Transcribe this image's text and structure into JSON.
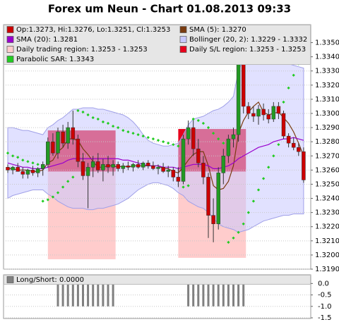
{
  "chart_data": [
    {
      "type": "candlestick",
      "title": "Forex um Neun - Chart 01.08.2013 09:33",
      "candles": {
        "name": "Op:1.3273, Hi:1.3276, Lo:1.3251, Cl:1.3253",
        "color": "#cc0000",
        "up_color": "#229922",
        "down_color": "#cc0000",
        "ohlc": [
          [
            1.3262,
            1.3264,
            1.3258,
            1.326
          ],
          [
            1.326,
            1.3263,
            1.3257,
            1.3262
          ],
          [
            1.3262,
            1.3265,
            1.3259,
            1.3259
          ],
          [
            1.3259,
            1.3262,
            1.3254,
            1.3257
          ],
          [
            1.3257,
            1.3261,
            1.3254,
            1.326
          ],
          [
            1.326,
            1.3263,
            1.3256,
            1.3258
          ],
          [
            1.3258,
            1.3262,
            1.3255,
            1.3261
          ],
          [
            1.3261,
            1.3266,
            1.3256,
            1.3264
          ],
          [
            1.3264,
            1.3283,
            1.3262,
            1.328
          ],
          [
            1.328,
            1.3286,
            1.327,
            1.3272
          ],
          [
            1.3272,
            1.329,
            1.3268,
            1.3287
          ],
          [
            1.3287,
            1.3292,
            1.3276,
            1.3279
          ],
          [
            1.3279,
            1.3294,
            1.3275,
            1.329
          ],
          [
            1.329,
            1.3302,
            1.3278,
            1.3282
          ],
          [
            1.3282,
            1.3285,
            1.3262,
            1.3266
          ],
          [
            1.3266,
            1.3272,
            1.3253,
            1.3256
          ],
          [
            1.3256,
            1.3265,
            1.3233,
            1.3262
          ],
          [
            1.3262,
            1.327,
            1.3255,
            1.3266
          ],
          [
            1.3266,
            1.3272,
            1.3258,
            1.326
          ],
          [
            1.326,
            1.3268,
            1.3252,
            1.3264
          ],
          [
            1.3264,
            1.327,
            1.3258,
            1.3262
          ],
          [
            1.3262,
            1.3267,
            1.3256,
            1.3264
          ],
          [
            1.3264,
            1.3266,
            1.3259,
            1.3261
          ],
          [
            1.3261,
            1.3265,
            1.3258,
            1.3263
          ],
          [
            1.3263,
            1.3266,
            1.326,
            1.3262
          ],
          [
            1.3262,
            1.3265,
            1.3259,
            1.3264
          ],
          [
            1.3264,
            1.3267,
            1.3261,
            1.3262
          ],
          [
            1.3262,
            1.3266,
            1.326,
            1.3265
          ],
          [
            1.3265,
            1.3267,
            1.3261,
            1.3263
          ],
          [
            1.3263,
            1.3266,
            1.326,
            1.3261
          ],
          [
            1.3261,
            1.3264,
            1.3257,
            1.3262
          ],
          [
            1.3262,
            1.3265,
            1.3258,
            1.3259
          ],
          [
            1.3259,
            1.3263,
            1.3255,
            1.326
          ],
          [
            1.326,
            1.3262,
            1.3252,
            1.3255
          ],
          [
            1.3255,
            1.3262,
            1.3248,
            1.3252
          ],
          [
            1.3252,
            1.3285,
            1.325,
            1.3282
          ],
          [
            1.3282,
            1.3295,
            1.3278,
            1.329
          ],
          [
            1.329,
            1.3296,
            1.327,
            1.3275
          ],
          [
            1.3275,
            1.3282,
            1.3262,
            1.3265
          ],
          [
            1.3265,
            1.327,
            1.325,
            1.3255
          ],
          [
            1.3255,
            1.3258,
            1.3212,
            1.3228
          ],
          [
            1.3228,
            1.324,
            1.3209,
            1.3222
          ],
          [
            1.3222,
            1.3262,
            1.3218,
            1.3258
          ],
          [
            1.3258,
            1.3275,
            1.325,
            1.327
          ],
          [
            1.327,
            1.3285,
            1.3265,
            1.3282
          ],
          [
            1.3282,
            1.329,
            1.3276,
            1.3285
          ],
          [
            1.3285,
            1.334,
            1.328,
            1.3335
          ],
          [
            1.3335,
            1.3343,
            1.33,
            1.3305
          ],
          [
            1.3305,
            1.3308,
            1.3296,
            1.33
          ],
          [
            1.33,
            1.3305,
            1.3294,
            1.3298
          ],
          [
            1.3298,
            1.3306,
            1.3292,
            1.3303
          ],
          [
            1.3303,
            1.3307,
            1.3295,
            1.3299
          ],
          [
            1.3299,
            1.3303,
            1.3293,
            1.3296
          ],
          [
            1.3296,
            1.3308,
            1.3294,
            1.3305
          ],
          [
            1.3305,
            1.3308,
            1.3296,
            1.33
          ],
          [
            1.33,
            1.3302,
            1.3282,
            1.3284
          ],
          [
            1.3284,
            1.3286,
            1.3276,
            1.3279
          ],
          [
            1.3279,
            1.3283,
            1.3274,
            1.3276
          ],
          [
            1.3276,
            1.3279,
            1.327,
            1.3273
          ],
          [
            1.3273,
            1.3276,
            1.3251,
            1.3253
          ]
        ]
      },
      "series": [
        {
          "name": "SMA (5): 1.3270",
          "color": "#7a3b10",
          "style": "line",
          "values": [
            1.3261,
            1.3261,
            1.326,
            1.326,
            1.326,
            1.3259,
            1.3259,
            1.326,
            1.3265,
            1.3267,
            1.3273,
            1.3276,
            1.3282,
            1.3282,
            1.3281,
            1.3275,
            1.3271,
            1.3266,
            1.3262,
            1.3262,
            1.3263,
            1.3263,
            1.3262,
            1.3263,
            1.3262,
            1.3263,
            1.3263,
            1.3263,
            1.3263,
            1.3263,
            1.3263,
            1.3261,
            1.3261,
            1.3259,
            1.3258,
            1.3262,
            1.3267,
            1.3271,
            1.3273,
            1.3273,
            1.3263,
            1.3249,
            1.3246,
            1.3247,
            1.3252,
            1.3263,
            1.3286,
            1.3295,
            1.3301,
            1.3305,
            1.3308,
            1.3301,
            1.3299,
            1.33,
            1.3301,
            1.3297,
            1.3293,
            1.3287,
            1.3279,
            1.327
          ]
        },
        {
          "name": "SMA (20): 1.3281",
          "color": "#9900cc",
          "style": "line",
          "values": [
            1.3265,
            1.3264,
            1.3263,
            1.3262,
            1.3262,
            1.3261,
            1.3261,
            1.3261,
            1.3262,
            1.3263,
            1.3264,
            1.3265,
            1.3267,
            1.3268,
            1.3268,
            1.3268,
            1.3268,
            1.3268,
            1.3268,
            1.3268,
            1.3268,
            1.3268,
            1.3268,
            1.3267,
            1.3267,
            1.3266,
            1.3265,
            1.3264,
            1.3263,
            1.3263,
            1.3263,
            1.3262,
            1.3262,
            1.3262,
            1.3261,
            1.3262,
            1.3263,
            1.3264,
            1.3264,
            1.3264,
            1.3263,
            1.3261,
            1.3261,
            1.3262,
            1.3263,
            1.3265,
            1.3268,
            1.327,
            1.3272,
            1.3274,
            1.3276,
            1.3277,
            1.3278,
            1.328,
            1.3281,
            1.3282,
            1.3282,
            1.3283,
            1.3282,
            1.3281
          ]
        },
        {
          "name": "Bollinger (20, 2): 1.3229 - 1.3332",
          "color": "#c8c8ff",
          "style": "band",
          "upper": [
            1.329,
            1.329,
            1.3289,
            1.3288,
            1.3288,
            1.3287,
            1.3286,
            1.3285,
            1.329,
            1.3292,
            1.3295,
            1.3297,
            1.33,
            1.3303,
            1.3303,
            1.3304,
            1.3304,
            1.3304,
            1.3303,
            1.3303,
            1.3302,
            1.3301,
            1.33,
            1.3299,
            1.3297,
            1.3294,
            1.329,
            1.3285,
            1.3281,
            1.3279,
            1.3278,
            1.3277,
            1.3277,
            1.3278,
            1.3279,
            1.3285,
            1.3292,
            1.3296,
            1.3297,
            1.3298,
            1.33,
            1.3302,
            1.3303,
            1.3305,
            1.3308,
            1.3312,
            1.333,
            1.3338,
            1.334,
            1.3341,
            1.3341,
            1.334,
            1.3339,
            1.3338,
            1.3337,
            1.3336,
            1.3335,
            1.3334,
            1.3333,
            1.3332
          ],
          "lower": [
            1.324,
            1.3242,
            1.3243,
            1.3244,
            1.3245,
            1.3246,
            1.3246,
            1.3246,
            1.3243,
            1.3241,
            1.3238,
            1.3236,
            1.3234,
            1.3233,
            1.3233,
            1.3233,
            1.3232,
            1.3232,
            1.3233,
            1.3233,
            1.3234,
            1.3235,
            1.3236,
            1.3238,
            1.324,
            1.3243,
            1.3246,
            1.3248,
            1.325,
            1.3251,
            1.3251,
            1.325,
            1.3249,
            1.3247,
            1.3244,
            1.3242,
            1.3238,
            1.3236,
            1.3234,
            1.3233,
            1.323,
            1.3226,
            1.3222,
            1.322,
            1.3219,
            1.3218,
            1.3216,
            1.3217,
            1.3218,
            1.322,
            1.3222,
            1.3224,
            1.3225,
            1.3226,
            1.3227,
            1.3228,
            1.3228,
            1.3229,
            1.3229,
            1.3229
          ]
        },
        {
          "name": "Parabolic SAR: 1.3343",
          "color": "#22cc22",
          "style": "dots",
          "values": [
            1.3272,
            1.327,
            1.3269,
            1.3267,
            1.3266,
            1.3265,
            1.3264,
            1.3238,
            1.3239,
            1.3241,
            1.3244,
            1.3248,
            1.3252,
            1.3255,
            1.3302,
            1.3301,
            1.3299,
            1.3297,
            1.3296,
            1.3294,
            1.3293,
            1.3291,
            1.329,
            1.3288,
            1.3287,
            1.3286,
            1.3285,
            1.3284,
            1.3283,
            1.3282,
            1.3281,
            1.328,
            1.3279,
            1.3278,
            1.3277,
            1.3248,
            1.3249,
            1.3296,
            1.3295,
            1.3293,
            1.329,
            1.3286,
            1.3282,
            1.3279,
            1.3209,
            1.3212,
            1.3216,
            1.3222,
            1.323,
            1.3238,
            1.3246,
            1.3254,
            1.3262,
            1.327,
            1.3278,
            1.3308,
            1.3318,
            1.3327,
            1.3335,
            1.3343
          ]
        }
      ],
      "regions": [
        {
          "name": "Daily trading region: 1.3253 - 1.3253",
          "color": "#ffcccc",
          "spans": [
            [
              1.3197,
              1.3259
            ],
            [
              1.3198,
              1.3259
            ]
          ]
        },
        {
          "name": "Daily S/L region: 1.3253 - 1.3253",
          "color": "#e8001c",
          "spans": [
            [
              1.3259,
              1.3288
            ],
            [
              1.3259,
              1.3289
            ]
          ]
        }
      ],
      "ylim": [
        1.319,
        1.33627
      ],
      "yticks": [
        {
          "value": 1.319,
          "label": "1.3190"
        },
        {
          "value": 1.32,
          "label": "1.3200"
        },
        {
          "value": 1.321,
          "label": "1.3210"
        },
        {
          "value": 1.322,
          "label": "1.3220"
        },
        {
          "value": 1.323,
          "label": "1.3230"
        },
        {
          "value": 1.324,
          "label": "1.3240"
        },
        {
          "value": 1.325,
          "label": "1.3250"
        },
        {
          "value": 1.326,
          "label": "1.3260"
        },
        {
          "value": 1.327,
          "label": "1.3270"
        },
        {
          "value": 1.328,
          "label": "1.3280"
        },
        {
          "value": 1.329,
          "label": "1.3290"
        },
        {
          "value": 1.33,
          "label": "1.3300"
        },
        {
          "value": 1.331,
          "label": "1.3310"
        },
        {
          "value": 1.332,
          "label": "1.3320"
        },
        {
          "value": 1.333,
          "label": "1.3330"
        },
        {
          "value": 1.334,
          "label": "1.3340"
        },
        {
          "value": 1.335,
          "label": "1.3350"
        }
      ],
      "grid": true
    },
    {
      "type": "bar",
      "name": "Long/Short: 0.0000",
      "color": "#808080",
      "values": [
        0,
        0,
        0,
        0,
        0,
        0,
        0,
        0,
        0,
        0,
        -1,
        -1,
        -1,
        -1,
        -1,
        -1,
        -1,
        -1,
        -1,
        -1,
        -1,
        -1,
        0,
        0,
        0,
        0,
        0,
        0,
        0,
        0,
        0,
        0,
        0,
        0,
        0,
        0,
        -1,
        -1,
        -1,
        -1,
        -1,
        -1,
        -1,
        -1,
        -1,
        -1,
        -1,
        -1,
        0,
        0,
        0,
        0,
        0,
        0,
        0,
        0,
        0,
        0,
        0,
        0
      ],
      "ylim": [
        -1.56,
        0.38
      ],
      "yticks": [
        {
          "value": 0,
          "label": "0.0"
        },
        {
          "value": -0.5,
          "label": "-0.5"
        },
        {
          "value": -1,
          "label": "-1.0"
        },
        {
          "value": -1.5,
          "label": "-1.5"
        }
      ],
      "grid": true
    }
  ]
}
